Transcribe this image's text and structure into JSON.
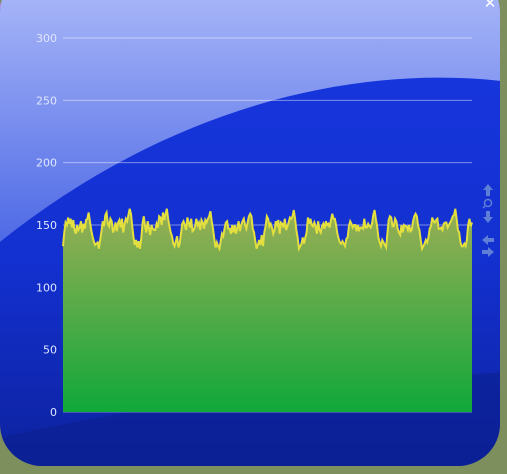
{
  "window": {
    "close_icon": "close-icon",
    "close_glyph": "✕",
    "background_colors": [
      "#aab8f7",
      "#1533d6",
      "#0b1e8c"
    ]
  },
  "controls": {
    "icons": [
      "arrow-up-icon",
      "zoom-icon",
      "arrow-down-icon",
      "arrow-left-icon",
      "arrow-right-icon"
    ],
    "color": "#5f7ed6"
  },
  "chart_data": {
    "type": "area",
    "title": "",
    "xlabel": "",
    "ylabel": "",
    "ylim": [
      0,
      300
    ],
    "yticks": [
      0,
      50,
      100,
      150,
      200,
      250,
      300
    ],
    "grid": true,
    "legend": "none",
    "fill_gradient": [
      "#9aae55",
      "#10a83a"
    ],
    "line_color": "#e3df3f",
    "series": [
      {
        "values": [
          133,
          144,
          152,
          150,
          156,
          151,
          155,
          148,
          154,
          146,
          143,
          150,
          146,
          148,
          153,
          144,
          151,
          147,
          154,
          155,
          160,
          153,
          146,
          141,
          137,
          134,
          135,
          136,
          131,
          138,
          145,
          153,
          149,
          158,
          160,
          151,
          149,
          155,
          153,
          144,
          147,
          152,
          145,
          152,
          154,
          148,
          155,
          144,
          151,
          155,
          153,
          158,
          163,
          159,
          149,
          140,
          134,
          138,
          132,
          137,
          131,
          139,
          151,
          157,
          149,
          144,
          153,
          148,
          142,
          150,
          147,
          146,
          146,
          151,
          148,
          157,
          156,
          150,
          160,
          154,
          159,
          163,
          155,
          149,
          144,
          141,
          135,
          133,
          137,
          141,
          132,
          135,
          143,
          151,
          153,
          150,
          146,
          156,
          152,
          148,
          155,
          145,
          146,
          149,
          155,
          150,
          152,
          146,
          154,
          152,
          147,
          154,
          152,
          155,
          157,
          161,
          153,
          147,
          139,
          132,
          136,
          133,
          131,
          137,
          143,
          141,
          147,
          152,
          153,
          147,
          147,
          143,
          150,
          144,
          150,
          143,
          148,
          153,
          145,
          150,
          153,
          155,
          150,
          147,
          152,
          157,
          159,
          157,
          147,
          144,
          137,
          131,
          134,
          138,
          134,
          142,
          133,
          144,
          149,
          157,
          155,
          149,
          151,
          148,
          143,
          146,
          153,
          150,
          154,
          143,
          152,
          151,
          148,
          155,
          146,
          149,
          152,
          156,
          155,
          157,
          162,
          155,
          146,
          140,
          131,
          133,
          135,
          140,
          135,
          140,
          144,
          156,
          151,
          155,
          150,
          149,
          152,
          149,
          143,
          153,
          146,
          144,
          149,
          151,
          147,
          153,
          150,
          151,
          148,
          154,
          159,
          155,
          155,
          150,
          143,
          139,
          136,
          135,
          137,
          135,
          133,
          139,
          140,
          149,
          153,
          151,
          148,
          150,
          150,
          145,
          150,
          146,
          148,
          148,
          147,
          155,
          148,
          148,
          151,
          149,
          148,
          151,
          158,
          162,
          155,
          149,
          140,
          136,
          133,
          138,
          136,
          134,
          132,
          143,
          154,
          157,
          156,
          149,
          149,
          155,
          153,
          147,
          144,
          142,
          150,
          144,
          150,
          149,
          149,
          146,
          150,
          145,
          146,
          153,
          157,
          159,
          157,
          149,
          146,
          138,
          131,
          133,
          135,
          138,
          136,
          140,
          147,
          149,
          156,
          153,
          152,
          154,
          155,
          147,
          147,
          148,
          146,
          151,
          152,
          152,
          148,
          150,
          152,
          154,
          157,
          158,
          163,
          155,
          146,
          144,
          136,
          133,
          133,
          135,
          133,
          138,
          150,
          155,
          149,
          152
        ]
      }
    ]
  }
}
